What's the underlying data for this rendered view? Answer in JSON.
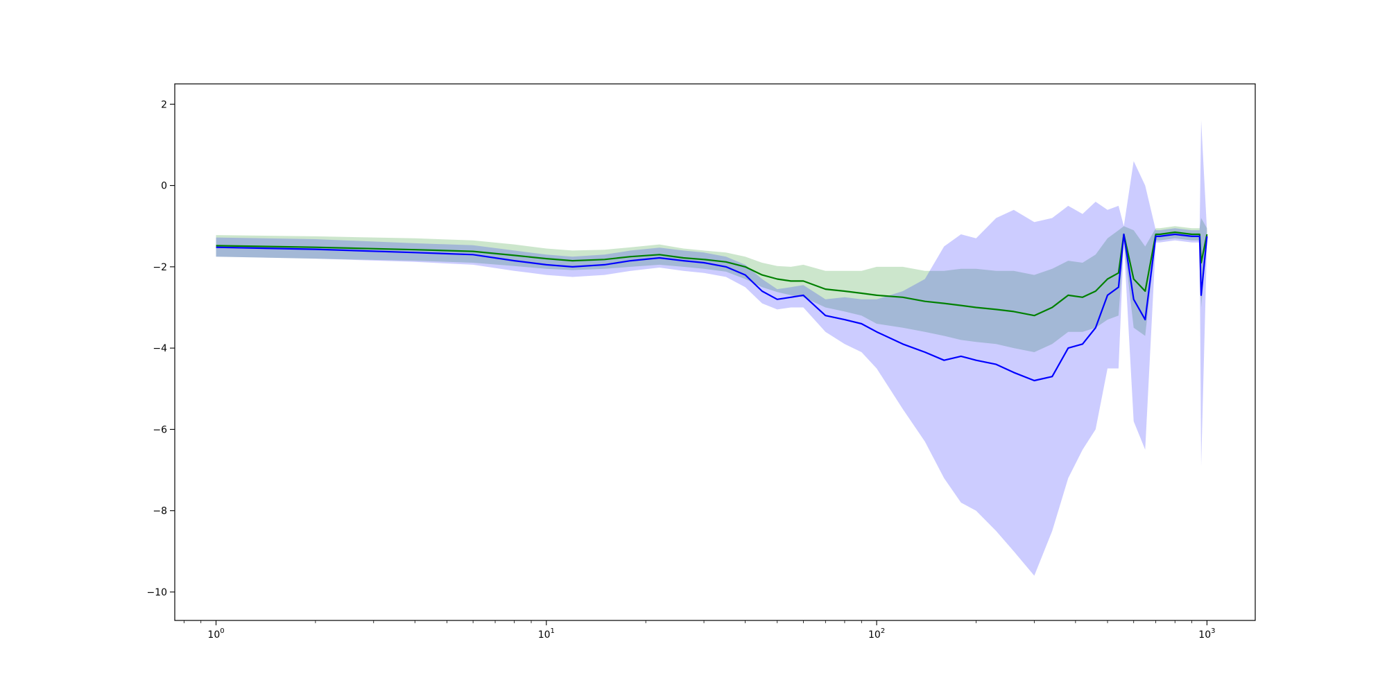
{
  "chart_data": {
    "type": "line",
    "title": "",
    "xlabel": "",
    "ylabel": "",
    "xscale": "log",
    "xlim": [
      0.75,
      1400
    ],
    "ylim": [
      -10.7,
      2.5
    ],
    "grid": false,
    "legend": "none",
    "x_major_ticks": [
      {
        "value": 1,
        "base": "10",
        "exp": "0"
      },
      {
        "value": 10,
        "base": "10",
        "exp": "1"
      },
      {
        "value": 100,
        "base": "10",
        "exp": "2"
      },
      {
        "value": 1000,
        "base": "10",
        "exp": "3"
      }
    ],
    "y_ticks": [
      {
        "value": 2,
        "label": "2"
      },
      {
        "value": 0,
        "label": "0"
      },
      {
        "value": -2,
        "label": "−2"
      },
      {
        "value": -4,
        "label": "−4"
      },
      {
        "value": -6,
        "label": "−6"
      },
      {
        "value": -8,
        "label": "−8"
      },
      {
        "value": -10,
        "label": "−10"
      }
    ],
    "series": [
      {
        "color": "#008000",
        "band_color": "#008000",
        "x": [
          1,
          2,
          4,
          6,
          8,
          10,
          12,
          15,
          18,
          22,
          26,
          30,
          35,
          40,
          45,
          50,
          55,
          60,
          70,
          80,
          90,
          100,
          120,
          140,
          160,
          180,
          200,
          230,
          260,
          300,
          340,
          380,
          420,
          460,
          500,
          540,
          560,
          600,
          650,
          700,
          720,
          800,
          900,
          950,
          960,
          1000
        ],
        "y": [
          -1.48,
          -1.52,
          -1.58,
          -1.62,
          -1.72,
          -1.8,
          -1.85,
          -1.82,
          -1.75,
          -1.7,
          -1.78,
          -1.82,
          -1.88,
          -2.0,
          -2.2,
          -2.3,
          -2.35,
          -2.35,
          -2.55,
          -2.6,
          -2.65,
          -2.7,
          -2.75,
          -2.85,
          -2.9,
          -2.95,
          -3.0,
          -3.05,
          -3.1,
          -3.2,
          -3.0,
          -2.7,
          -2.75,
          -2.6,
          -2.3,
          -2.15,
          -1.2,
          -2.3,
          -2.6,
          -1.2,
          -1.2,
          -1.15,
          -1.2,
          -1.2,
          -1.9,
          -1.2
        ],
        "lower": [
          -1.75,
          -1.8,
          -1.85,
          -1.9,
          -1.98,
          -2.05,
          -2.08,
          -2.05,
          -2.0,
          -1.95,
          -2.0,
          -2.05,
          -2.12,
          -2.3,
          -2.5,
          -2.62,
          -2.7,
          -2.75,
          -3.0,
          -3.1,
          -3.2,
          -3.4,
          -3.5,
          -3.6,
          -3.7,
          -3.8,
          -3.85,
          -3.9,
          -4.0,
          -4.1,
          -3.9,
          -3.6,
          -3.6,
          -3.5,
          -3.3,
          -3.2,
          -1.4,
          -3.5,
          -3.7,
          -1.35,
          -1.35,
          -1.3,
          -1.35,
          -1.35,
          -3.0,
          -1.35
        ],
        "upper": [
          -1.22,
          -1.25,
          -1.3,
          -1.35,
          -1.45,
          -1.55,
          -1.6,
          -1.58,
          -1.52,
          -1.45,
          -1.55,
          -1.6,
          -1.65,
          -1.75,
          -1.9,
          -1.98,
          -2.0,
          -1.95,
          -2.1,
          -2.1,
          -2.1,
          -2.0,
          -2.0,
          -2.1,
          -2.1,
          -2.05,
          -2.05,
          -2.1,
          -2.1,
          -2.2,
          -2.05,
          -1.85,
          -1.9,
          -1.7,
          -1.3,
          -1.1,
          -1.0,
          -1.1,
          -1.5,
          -1.05,
          -1.05,
          -1.0,
          -1.05,
          -1.05,
          -0.8,
          -1.05
        ]
      },
      {
        "color": "#0000ff",
        "band_color": "#0000ff",
        "x": [
          1,
          2,
          4,
          6,
          8,
          10,
          12,
          15,
          18,
          22,
          26,
          30,
          35,
          40,
          45,
          50,
          55,
          60,
          70,
          80,
          90,
          100,
          120,
          140,
          160,
          180,
          200,
          230,
          260,
          300,
          340,
          380,
          420,
          460,
          500,
          540,
          560,
          600,
          650,
          700,
          720,
          800,
          900,
          950,
          960,
          1000
        ],
        "y": [
          -1.52,
          -1.57,
          -1.65,
          -1.7,
          -1.85,
          -1.95,
          -2.0,
          -1.95,
          -1.85,
          -1.78,
          -1.85,
          -1.9,
          -2.0,
          -2.2,
          -2.6,
          -2.8,
          -2.75,
          -2.7,
          -3.2,
          -3.3,
          -3.4,
          -3.6,
          -3.9,
          -4.1,
          -4.3,
          -4.2,
          -4.3,
          -4.4,
          -4.6,
          -4.8,
          -4.7,
          -4.0,
          -3.9,
          -3.5,
          -2.7,
          -2.5,
          -1.2,
          -2.8,
          -3.3,
          -1.25,
          -1.25,
          -1.2,
          -1.25,
          -1.25,
          -2.7,
          -1.25
        ],
        "lower": [
          -1.75,
          -1.8,
          -1.88,
          -1.95,
          -2.1,
          -2.2,
          -2.25,
          -2.2,
          -2.1,
          -2.02,
          -2.1,
          -2.15,
          -2.25,
          -2.5,
          -2.9,
          -3.05,
          -3.0,
          -3.0,
          -3.6,
          -3.9,
          -4.1,
          -4.5,
          -5.5,
          -6.3,
          -7.2,
          -7.8,
          -8.0,
          -8.5,
          -9.0,
          -9.6,
          -8.5,
          -7.2,
          -6.5,
          -6.0,
          -4.5,
          -4.5,
          -1.4,
          -5.8,
          -6.5,
          -1.4,
          -1.4,
          -1.35,
          -1.4,
          -1.4,
          -6.9,
          -1.4
        ],
        "upper": [
          -1.28,
          -1.32,
          -1.42,
          -1.47,
          -1.6,
          -1.7,
          -1.75,
          -1.7,
          -1.6,
          -1.53,
          -1.6,
          -1.65,
          -1.75,
          -1.95,
          -2.3,
          -2.55,
          -2.5,
          -2.45,
          -2.8,
          -2.75,
          -2.8,
          -2.8,
          -2.6,
          -2.3,
          -1.5,
          -1.2,
          -1.3,
          -0.8,
          -0.6,
          -0.9,
          -0.8,
          -0.5,
          -0.7,
          -0.4,
          -0.6,
          -0.5,
          -1.0,
          0.6,
          0.0,
          -1.1,
          -1.1,
          -1.05,
          -1.1,
          -1.1,
          1.6,
          -1.1
        ]
      }
    ]
  }
}
